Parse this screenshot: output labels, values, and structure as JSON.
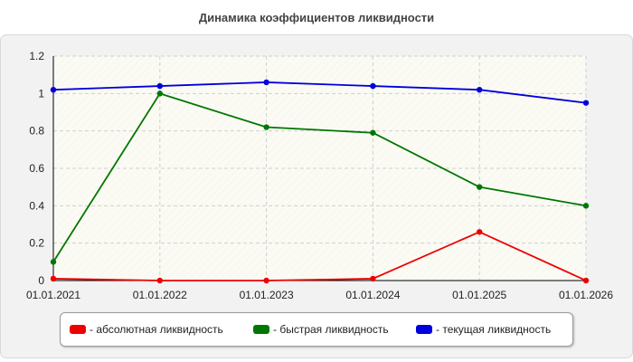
{
  "chart_data": {
    "type": "line",
    "title": "Динамика коэффициентов ликвидности",
    "x": [
      "01.01.2021",
      "01.01.2022",
      "01.01.2023",
      "01.01.2024",
      "01.01.2025",
      "01.01.2026"
    ],
    "ylim": [
      0,
      1.2
    ],
    "yticks": [
      "0",
      "0.2",
      "0.4",
      "0.6",
      "0.8",
      "1",
      "1.2"
    ],
    "grid": true,
    "legend_position": "bottom",
    "series": [
      {
        "name": " - абсолютная ликвидность",
        "color": "#ee0000",
        "values": [
          0.01,
          0.0,
          0.0,
          0.01,
          0.26,
          0.0
        ]
      },
      {
        "name": " - быстрая ликвидность",
        "color": "#007700",
        "values": [
          0.1,
          1.0,
          0.82,
          0.79,
          0.5,
          0.4
        ]
      },
      {
        "name": " - текущая ликвидность",
        "color": "#0000dd",
        "values": [
          1.02,
          1.04,
          1.06,
          1.04,
          1.02,
          0.95
        ]
      }
    ]
  }
}
